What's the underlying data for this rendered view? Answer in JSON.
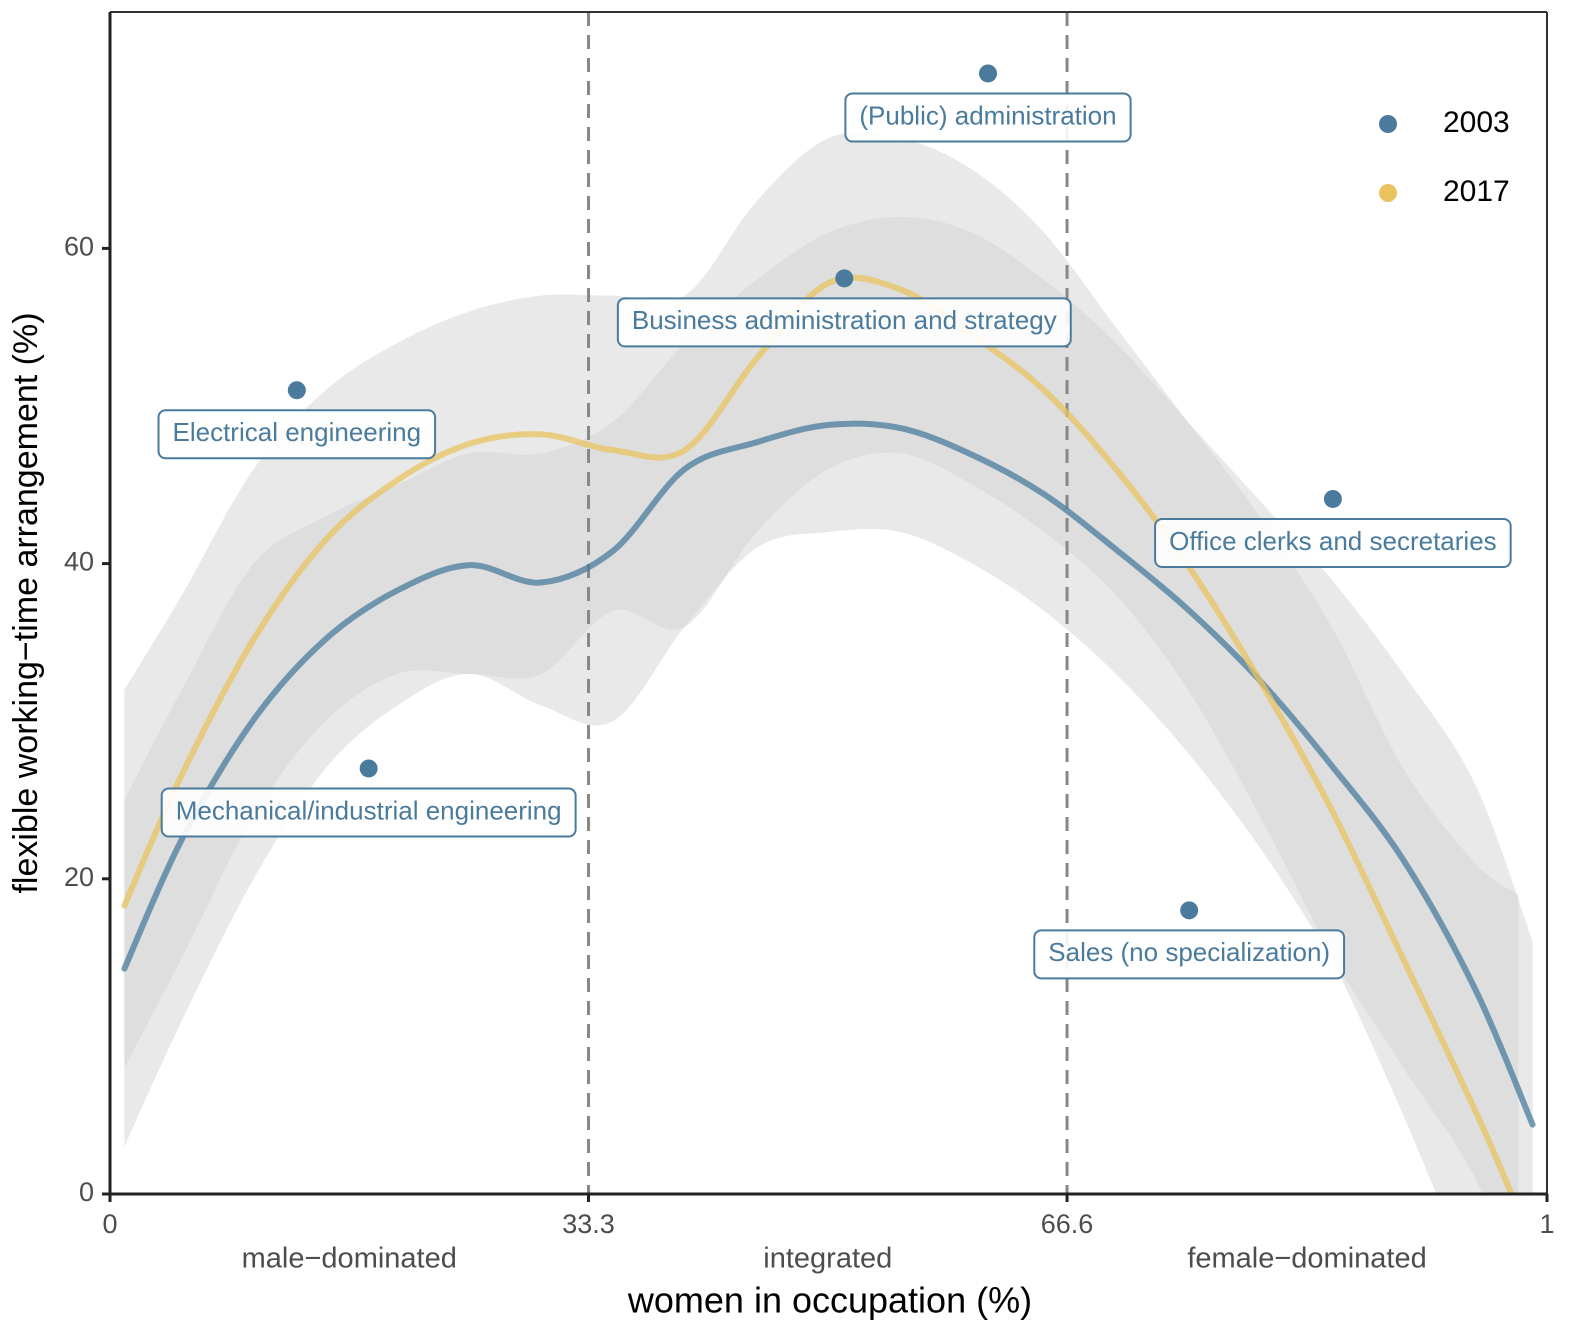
{
  "chart_data": {
    "type": "line",
    "x_label": "women in occupation (%)",
    "y_label": "flexible working−time arrangement (%)",
    "xlim": [
      0,
      100
    ],
    "ylim": [
      0,
      75
    ],
    "xticks": [
      0,
      33.3,
      66.6,
      {
        "value": 100,
        "label": "1"
      }
    ],
    "yticks": [
      0,
      20,
      40,
      60
    ],
    "vlines": [
      33.3,
      66.6
    ],
    "region_labels": [
      "male−dominated",
      "integrated",
      "female−dominated"
    ],
    "band_color": "#d4d4d4",
    "legend": "top-right",
    "series": [
      {
        "name": "2003",
        "color": "#4a7b9d",
        "x": [
          1,
          5,
          10,
          15,
          20,
          25,
          30,
          35,
          40,
          45,
          50,
          55,
          60,
          65,
          70,
          75,
          80,
          85,
          90,
          95,
          99
        ],
        "values": [
          14.3,
          22.5,
          30.1,
          35.2,
          38.3,
          39.9,
          38.8,
          40.8,
          46.0,
          47.7,
          48.8,
          48.6,
          46.9,
          44.4,
          40.9,
          37.1,
          32.6,
          27.2,
          21.2,
          13.0,
          4.4
        ],
        "lower": [
          3,
          11,
          20,
          27,
          31,
          33,
          31,
          30,
          36,
          41,
          42,
          42,
          40,
          37,
          33,
          28,
          22,
          15,
          8,
          1,
          -8
        ],
        "upper": [
          25,
          32,
          40,
          43,
          45,
          47,
          47,
          49,
          54,
          58,
          61,
          62,
          61,
          58,
          54,
          49,
          44,
          39,
          33,
          26,
          16
        ]
      },
      {
        "name": "2017",
        "color": "#e8c35f",
        "x": [
          1,
          5,
          10,
          15,
          20,
          25,
          30,
          35,
          40,
          45,
          50,
          55,
          60,
          65,
          70,
          75,
          80,
          85,
          90,
          95,
          98
        ],
        "values": [
          18.3,
          26.6,
          35.2,
          41.5,
          45.3,
          47.6,
          48.2,
          47.2,
          47.2,
          53.0,
          57.8,
          57.4,
          54.5,
          51.0,
          46.0,
          39.9,
          32.6,
          24.4,
          14.9,
          5.3,
          -1
        ],
        "lower": [
          8,
          15,
          24,
          30,
          33,
          33,
          33,
          37,
          36,
          42,
          46,
          47,
          45,
          42,
          38,
          32,
          24,
          15,
          5,
          -6,
          -12
        ],
        "upper": [
          32,
          38,
          46,
          51,
          54,
          56,
          57,
          57,
          57,
          63,
          67,
          67,
          65,
          61,
          55,
          49,
          43,
          36,
          27,
          21,
          19
        ]
      }
    ],
    "points_color": "#4a7b9d",
    "points": [
      {
        "label": "(Public) administration",
        "x": 61.1,
        "y": 71.1
      },
      {
        "label": "Business administration and strategy",
        "x": 51.1,
        "y": 58.1
      },
      {
        "label": "Electrical engineering",
        "x": 13.0,
        "y": 51.0
      },
      {
        "label": "Office clerks and secretaries",
        "x": 85.1,
        "y": 44.1
      },
      {
        "label": "Mechanical/industrial engineering",
        "x": 18.0,
        "y": 27.0
      },
      {
        "label": "Sales (no specialization)",
        "x": 75.1,
        "y": 18.0
      }
    ]
  }
}
